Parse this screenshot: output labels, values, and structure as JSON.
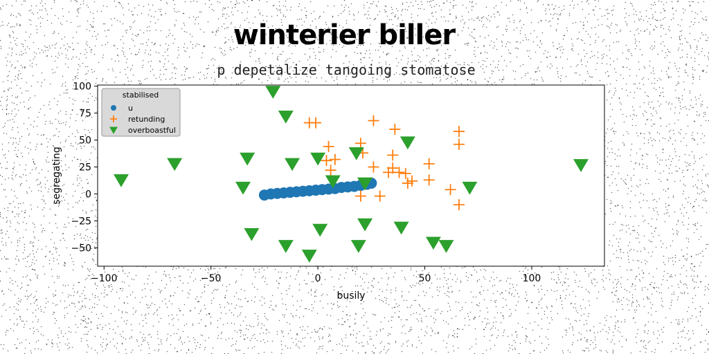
{
  "chart_data": {
    "type": "scatter",
    "title": "winterier biller",
    "subtitle": "p depetalize tangoing stomatose",
    "xlabel": "busily",
    "ylabel": "segregating",
    "xlim": [
      -103,
      134
    ],
    "ylim": [
      -67,
      101
    ],
    "xticks": [
      -100,
      -50,
      0,
      50,
      100
    ],
    "yticks": [
      -50,
      -25,
      0,
      25,
      50,
      75,
      100
    ],
    "grid": false,
    "legend": {
      "title": "stabilised",
      "placement": "top-left"
    },
    "series": [
      {
        "name": "u",
        "marker": "circle",
        "color": "#1f77b4",
        "x": [
          -25,
          -22,
          -19,
          -16,
          -13,
          -10,
          -7,
          -4,
          -1,
          2,
          5,
          8,
          11,
          14,
          17,
          20,
          23,
          25
        ],
        "y": [
          -1,
          0,
          0.5,
          1,
          1.5,
          2,
          2.5,
          3,
          3.5,
          4,
          4.5,
          5,
          6,
          6.5,
          7,
          8,
          9,
          10
        ]
      },
      {
        "name": "retunding",
        "marker": "plus",
        "color": "#ff7f0e",
        "x": [
          -4,
          -1,
          26,
          36,
          66,
          66,
          5,
          20,
          21,
          8,
          35,
          52,
          4,
          6,
          26,
          33,
          38,
          35,
          41,
          44,
          42,
          52,
          62,
          66,
          20,
          29
        ],
        "y": [
          66,
          66,
          68,
          60,
          58,
          46,
          44,
          47,
          38,
          32,
          36,
          28,
          31,
          22,
          25,
          20,
          20,
          24,
          19,
          12,
          10,
          13,
          4,
          -10,
          -2,
          -2
        ]
      },
      {
        "name": "overboastful",
        "marker": "triangle-down",
        "color": "#2ca02c",
        "x": [
          -21,
          -15,
          42,
          18,
          0,
          -33,
          -12,
          -67,
          -92,
          -35,
          7,
          22,
          71,
          123,
          -31,
          -15,
          1,
          22,
          39,
          19,
          54,
          60,
          -4
        ],
        "y": [
          95,
          72,
          48,
          38,
          33,
          33,
          28,
          28,
          13,
          6,
          12,
          10,
          6,
          27,
          -37,
          -48,
          -33,
          -28,
          -31,
          -48,
          -45,
          -48,
          -57
        ]
      }
    ]
  }
}
